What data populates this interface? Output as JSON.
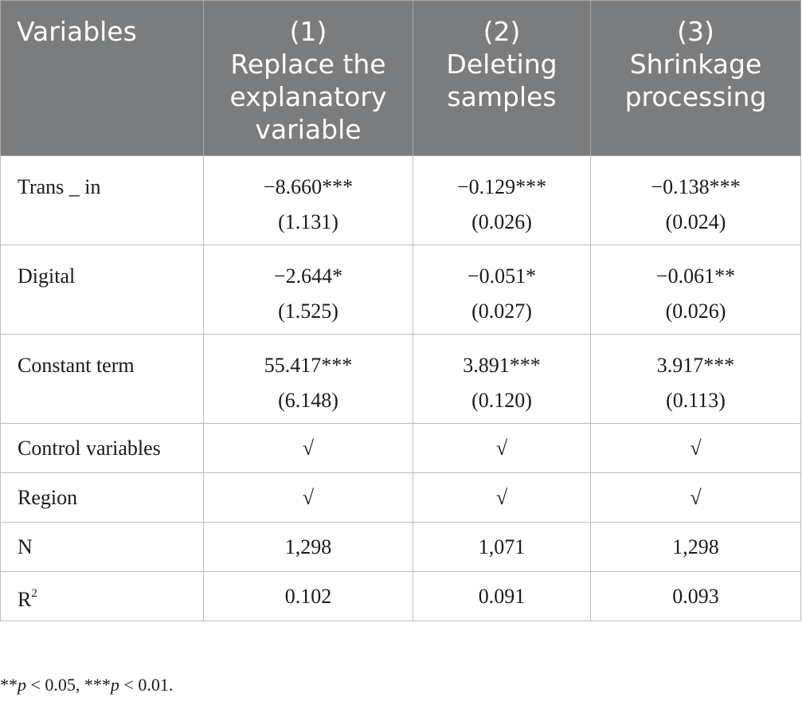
{
  "header": {
    "col0": "Variables",
    "col1": [
      "(1)",
      "Replace the",
      "explanatory",
      "variable"
    ],
    "col2": [
      "(2)",
      "Deleting",
      "samples"
    ],
    "col3": [
      "(3)",
      "Shrinkage",
      "processing"
    ]
  },
  "rows": [
    {
      "label": "Trans _ in",
      "c1": [
        "−8.660***",
        "(1.131)"
      ],
      "c2": [
        "−0.129***",
        "(0.026)"
      ],
      "c3": [
        "−0.138***",
        "(0.024)"
      ]
    },
    {
      "label": "Digital",
      "c1": [
        "−2.644*",
        "(1.525)"
      ],
      "c2": [
        "−0.051*",
        "(0.027)"
      ],
      "c3": [
        "−0.061**",
        "(0.026)"
      ]
    },
    {
      "label": "Constant term",
      "c1": [
        "55.417***",
        "(6.148)"
      ],
      "c2": [
        "3.891***",
        "(0.120)"
      ],
      "c3": [
        "3.917***",
        "(0.113)"
      ]
    },
    {
      "label": "Control variables",
      "c1": "√",
      "c2": "√",
      "c3": "√"
    },
    {
      "label": "Region",
      "c1": "√",
      "c2": "√",
      "c3": "√"
    },
    {
      "label": "N",
      "c1": "1,298",
      "c2": "1,071",
      "c3": "1,298"
    },
    {
      "label": "R",
      "label_sup": "2",
      "c1": "0.102",
      "c2": "0.091",
      "c3": "0.093"
    }
  ],
  "note": {
    "stars2": "**",
    "p1": "p",
    "text1": " < 0.05, ",
    "stars3": "***",
    "p2": "p",
    "text2": " < 0.01."
  }
}
